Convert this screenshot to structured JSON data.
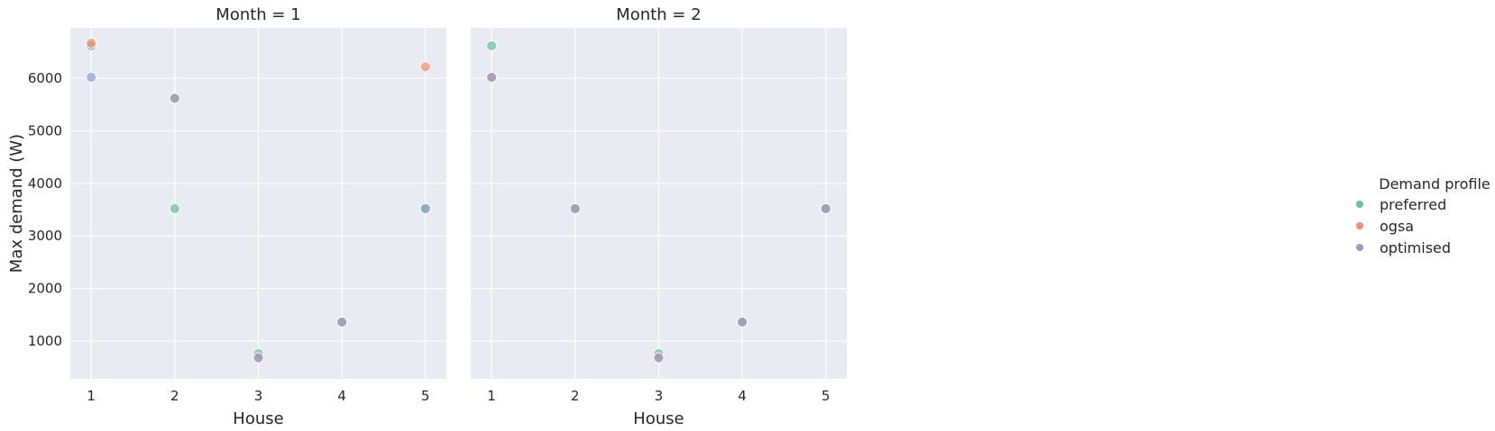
{
  "chart_data": {
    "type": "scatter",
    "x_label": "House",
    "y_label": "Max demand (W)",
    "x_ticks": [
      1,
      2,
      3,
      4,
      5
    ],
    "y_ticks": [
      1000,
      2000,
      3000,
      4000,
      5000,
      6000
    ],
    "xlim": [
      0.75,
      5.25
    ],
    "ylim": [
      280,
      6960
    ],
    "grid": true,
    "background": "#eaeaf2",
    "legend": {
      "title": "Demand profile",
      "placement": "right",
      "entries": [
        {
          "name": "preferred",
          "color": "#66c2a5"
        },
        {
          "name": "ogsa",
          "color": "#fc8d62"
        },
        {
          "name": "optimised",
          "color": "#8da0cb"
        }
      ]
    },
    "panels": [
      {
        "title": "Month = 1",
        "series": [
          {
            "name": "preferred",
            "x": [
              1,
              2,
              3,
              4,
              5
            ],
            "y": [
              6620,
              3520,
              760,
              1360,
              3520
            ]
          },
          {
            "name": "ogsa",
            "x": [
              1,
              2,
              3,
              4,
              5
            ],
            "y": [
              6670,
              5620,
              680,
              1360,
              6220
            ]
          },
          {
            "name": "optimised",
            "x": [
              1,
              2,
              3,
              4,
              5
            ],
            "y": [
              6020,
              5620,
              680,
              1360,
              3520
            ]
          }
        ]
      },
      {
        "title": "Month = 2",
        "series": [
          {
            "name": "preferred",
            "x": [
              1,
              2,
              3,
              4,
              5
            ],
            "y": [
              6620,
              3520,
              760,
              1360,
              3520
            ]
          },
          {
            "name": "ogsa",
            "x": [
              1,
              2,
              3,
              4,
              5
            ],
            "y": [
              6020,
              3520,
              680,
              1360,
              3520
            ]
          },
          {
            "name": "optimised",
            "x": [
              1,
              2,
              3,
              4,
              5
            ],
            "y": [
              6020,
              3520,
              680,
              1360,
              3520
            ]
          }
        ]
      }
    ]
  }
}
